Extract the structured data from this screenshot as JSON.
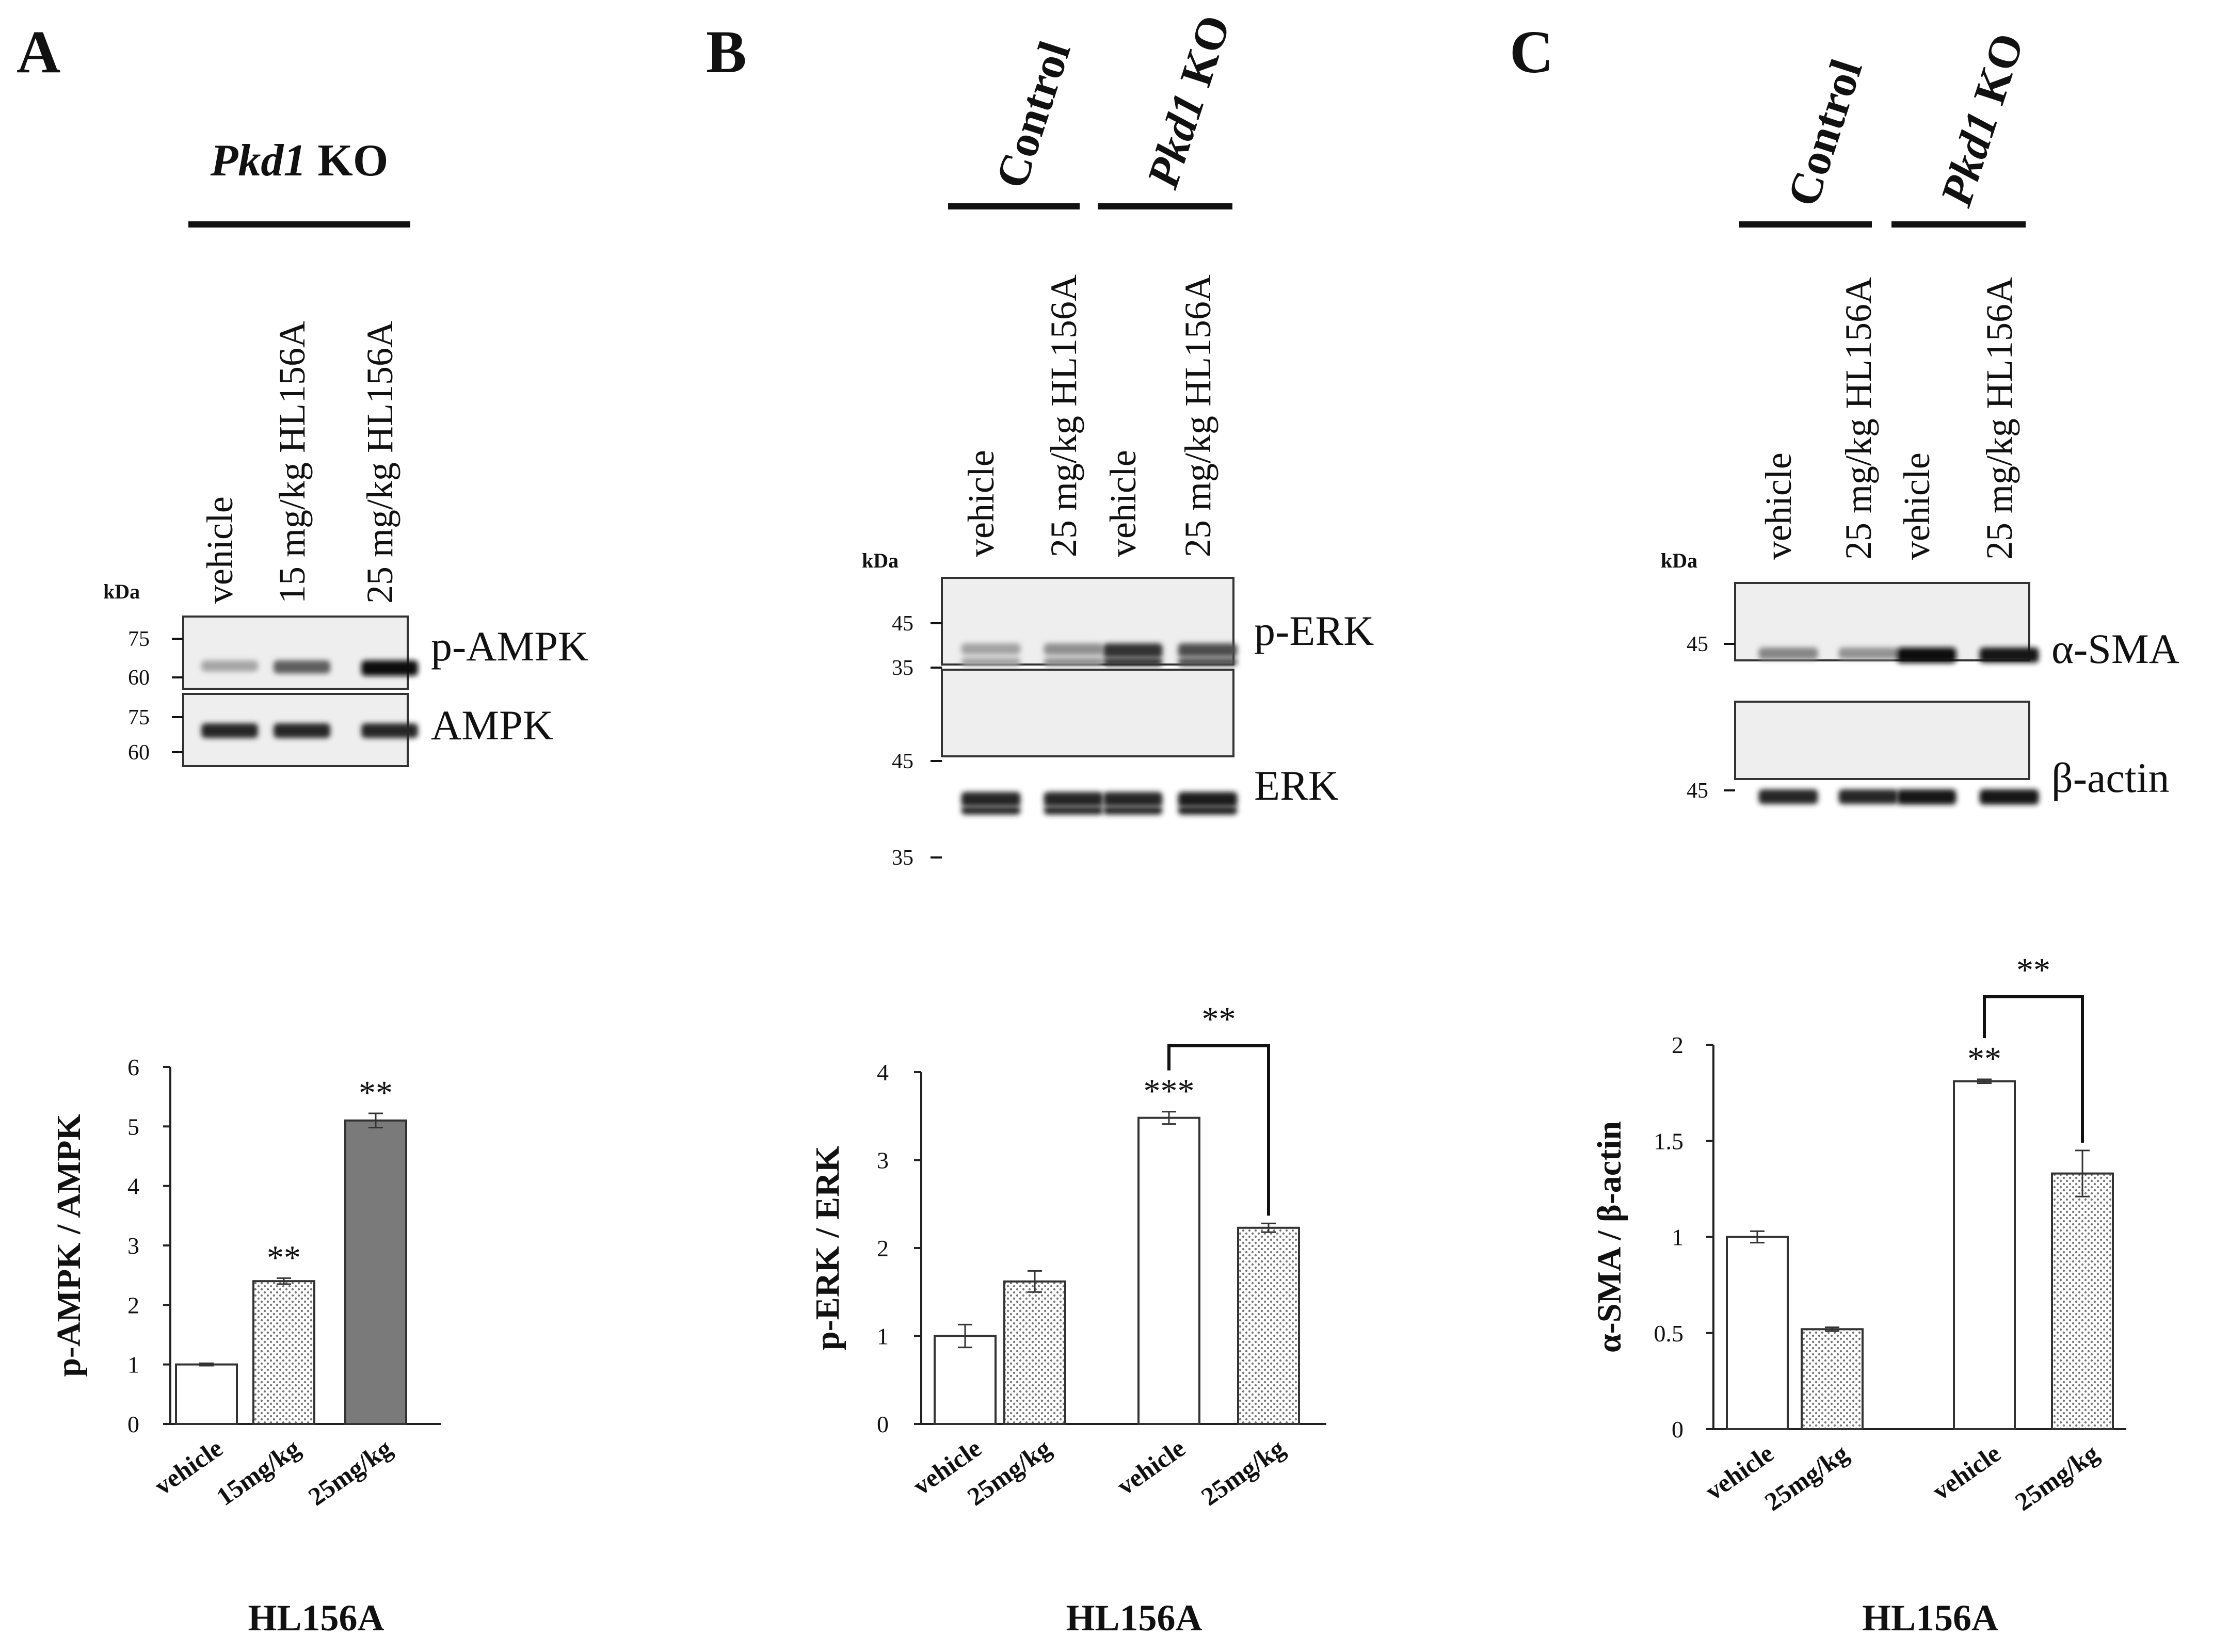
{
  "panels": [
    {
      "letter": "A",
      "group_labels": [
        {
          "italic": "Pkd1",
          "rest": " KO"
        }
      ],
      "lane_labels": [
        "vehicle",
        "15 mg/kg HL156A",
        "25 mg/kg HL156A"
      ],
      "blot": {
        "kda_label": "kDa",
        "rows": [
          {
            "protein": "p-AMPK",
            "markers": [
              "75",
              "60"
            ],
            "band_darkness": [
              0.18,
              0.55,
              1.0
            ]
          },
          {
            "protein": "AMPK",
            "markers": [
              "75",
              "60"
            ],
            "band_darkness": [
              0.85,
              0.85,
              0.85
            ]
          }
        ]
      }
    },
    {
      "letter": "B",
      "group_labels": [
        {
          "italic": "",
          "rest": "Control"
        },
        {
          "italic": "Pkd1",
          "rest": " KO"
        }
      ],
      "lane_labels": [
        "vehicle",
        "25 mg/kg HL156A",
        "vehicle",
        "25 mg/kg HL156A"
      ],
      "blot": {
        "kda_label": "kDa",
        "rows": [
          {
            "protein": "p-ERK",
            "markers": [
              "45",
              "35"
            ],
            "band_darkness": [
              0.2,
              0.3,
              0.8,
              0.65
            ]
          },
          {
            "protein": "ERK",
            "markers": [
              "45",
              "35"
            ],
            "band_darkness": [
              0.85,
              0.85,
              0.85,
              0.9
            ]
          }
        ]
      }
    },
    {
      "letter": "C",
      "group_labels": [
        {
          "italic": "",
          "rest": "Control"
        },
        {
          "italic": "Pkd1",
          "rest": " KO"
        }
      ],
      "lane_labels": [
        "vehicle",
        "25 mg/kg HL156A",
        "vehicle",
        "25 mg/kg HL156A"
      ],
      "blot": {
        "kda_label": "kDa",
        "rows": [
          {
            "protein": "α-SMA",
            "markers": [
              "45"
            ],
            "band_darkness": [
              0.35,
              0.28,
              1.0,
              0.95
            ]
          },
          {
            "protein": "β-actin",
            "markers": [
              "45"
            ],
            "band_darkness": [
              0.85,
              0.85,
              0.95,
              0.95
            ]
          }
        ]
      }
    }
  ],
  "chart_data": [
    {
      "type": "bar",
      "panel": "A",
      "categories": [
        "vehicle",
        "15mg/kg",
        "25mg/kg"
      ],
      "values": [
        1.0,
        2.4,
        5.1
      ],
      "errors": [
        0.02,
        0.05,
        0.12
      ],
      "fills": [
        "white",
        "dotted",
        "#7a7a7a"
      ],
      "significance": [
        "",
        "**",
        "**"
      ],
      "ylabel": "p-AMPK / AMPK",
      "xlabel": "HL156A",
      "ylim": [
        0,
        6
      ],
      "yticks": [
        "0",
        "1",
        "2",
        "3",
        "4",
        "5",
        "6"
      ],
      "bracket": null
    },
    {
      "type": "bar",
      "panel": "B",
      "categories": [
        "vehicle",
        "25mg/kg",
        "vehicle",
        "25mg/kg"
      ],
      "values": [
        1.0,
        1.62,
        3.48,
        2.23
      ],
      "errors": [
        0.13,
        0.12,
        0.07,
        0.05
      ],
      "fills": [
        "white",
        "dotted",
        "white",
        "dotted"
      ],
      "significance": [
        "",
        "",
        "***",
        ""
      ],
      "ylabel": "p-ERK / ERK",
      "xlabel": "HL156A",
      "ylim": [
        0,
        4
      ],
      "yticks": [
        "0",
        "1",
        "2",
        "3",
        "4"
      ],
      "bracket": {
        "from": 2,
        "to": 3,
        "top_value": 4.3,
        "label": "**"
      }
    },
    {
      "type": "bar",
      "panel": "C",
      "categories": [
        "vehicle",
        "25mg/kg",
        "vehicle",
        "25mg/kg"
      ],
      "values": [
        1.0,
        0.52,
        1.81,
        1.33
      ],
      "errors": [
        0.03,
        0.01,
        0.01,
        0.12
      ],
      "fills": [
        "white",
        "dotted",
        "white",
        "dotted"
      ],
      "significance": [
        "",
        "",
        "**",
        ""
      ],
      "ylabel": "α-SMA / β-actin",
      "xlabel": "HL156A",
      "ylim": [
        0,
        2
      ],
      "yticks": [
        "0",
        "0.5",
        "1",
        "1.5",
        "2"
      ],
      "bracket": {
        "from": 2,
        "to": 3,
        "top_value": 2.25,
        "label": "**"
      }
    }
  ]
}
